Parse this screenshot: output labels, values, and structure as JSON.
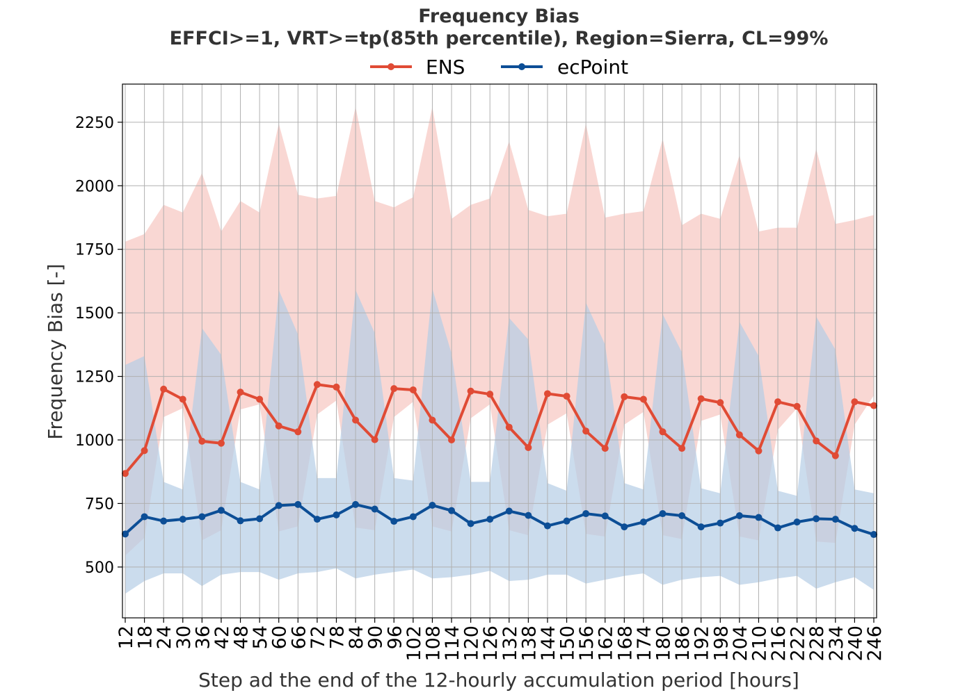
{
  "chart_data": {
    "type": "line",
    "title": "Frequency Bias",
    "subtitle": "EFFCI>=1, VRT>=tp(85th percentile), Region=Sierra, CL=99%",
    "xlabel": "Step ad the end of the 12-hourly accumulation period [hours]",
    "ylabel": "Frequency Bias [-]",
    "ylim": [
      300,
      2400
    ],
    "yticks": [
      500,
      750,
      1000,
      1250,
      1500,
      1750,
      2000,
      2250
    ],
    "grid": true,
    "legend_position": "top-center",
    "x": [
      12,
      18,
      24,
      30,
      36,
      42,
      48,
      54,
      60,
      66,
      72,
      78,
      84,
      90,
      96,
      102,
      108,
      114,
      120,
      126,
      132,
      138,
      144,
      150,
      156,
      162,
      168,
      174,
      180,
      186,
      192,
      198,
      204,
      210,
      216,
      222,
      228,
      234,
      240,
      246
    ],
    "series": [
      {
        "name": "ENS",
        "color": "#e04b35",
        "band_color": "#f7c6c0",
        "values": [
          868,
          958,
          1200,
          1160,
          995,
          987,
          1188,
          1160,
          1055,
          1032,
          1218,
          1208,
          1078,
          1001,
          1202,
          1197,
          1078,
          1000,
          1192,
          1180,
          1050,
          970,
          1182,
          1172,
          1035,
          967,
          1170,
          1160,
          1032,
          967,
          1162,
          1147,
          1020,
          957,
          1150,
          1132,
          996,
          938,
          1150,
          1135
        ],
        "ci_upper": [
          1780,
          1810,
          1925,
          1895,
          2050,
          1820,
          1940,
          1895,
          2245,
          1965,
          1950,
          1960,
          2310,
          1940,
          1915,
          1955,
          2310,
          1870,
          1925,
          1950,
          2175,
          1905,
          1880,
          1890,
          2245,
          1875,
          1890,
          1900,
          2185,
          1845,
          1890,
          1870,
          2120,
          1820,
          1835,
          1835,
          2145,
          1850,
          1865,
          1885
        ],
        "ci_lower": [
          545,
          615,
          1090,
          1125,
          605,
          645,
          1120,
          1140,
          640,
          660,
          1100,
          1155,
          655,
          645,
          1090,
          1150,
          660,
          640,
          1085,
          1140,
          645,
          625,
          1060,
          1105,
          630,
          620,
          1060,
          1110,
          625,
          610,
          1075,
          1100,
          620,
          605,
          1040,
          1125,
          600,
          595,
          1060,
          1175
        ]
      },
      {
        "name": "ecPoint",
        "color": "#0c4e96",
        "band_color": "#b5cde6",
        "values": [
          630,
          698,
          681,
          688,
          698,
          723,
          682,
          690,
          742,
          746,
          688,
          705,
          746,
          728,
          680,
          698,
          743,
          722,
          671,
          688,
          720,
          703,
          662,
          681,
          710,
          701,
          658,
          677,
          710,
          702,
          658,
          673,
          702,
          695,
          654,
          677,
          690,
          688,
          652,
          628
        ],
        "ci_upper": [
          1295,
          1330,
          835,
          805,
          1440,
          1335,
          835,
          805,
          1590,
          1415,
          850,
          850,
          1590,
          1420,
          850,
          840,
          1595,
          1340,
          835,
          835,
          1480,
          1395,
          830,
          800,
          1540,
          1375,
          830,
          805,
          1495,
          1345,
          810,
          790,
          1465,
          1330,
          800,
          780,
          1485,
          1355,
          805,
          790
        ],
        "ci_lower": [
          395,
          445,
          475,
          475,
          425,
          470,
          480,
          480,
          450,
          475,
          480,
          495,
          455,
          470,
          480,
          490,
          455,
          460,
          470,
          485,
          445,
          450,
          470,
          470,
          435,
          450,
          465,
          475,
          430,
          450,
          460,
          465,
          430,
          440,
          455,
          465,
          415,
          440,
          460,
          410
        ]
      }
    ]
  }
}
